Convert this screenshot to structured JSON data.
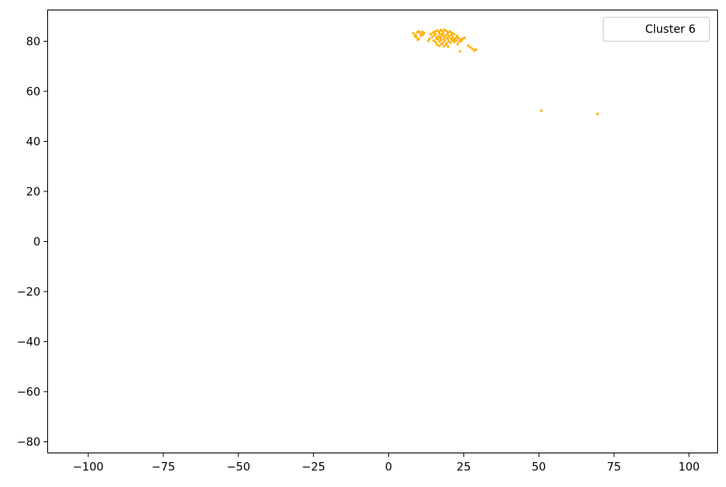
{
  "chart_data": {
    "type": "scatter",
    "title": "",
    "xlabel": "",
    "ylabel": "",
    "xlim": [
      -113.5,
      109.5
    ],
    "ylim": [
      -84.5,
      92.5
    ],
    "grid": false,
    "legend_position": "top-right",
    "xticks": [
      -100,
      -75,
      -50,
      -25,
      0,
      25,
      50,
      75,
      100
    ],
    "xtick_labels": [
      "−100",
      "−75",
      "−50",
      "−25",
      "0",
      "25",
      "50",
      "75",
      "100"
    ],
    "yticks": [
      -80,
      -60,
      -40,
      -20,
      0,
      20,
      40,
      60,
      80
    ],
    "ytick_labels": [
      "−80",
      "−60",
      "−40",
      "−20",
      "0",
      "20",
      "40",
      "60",
      "80"
    ],
    "series": [
      {
        "name": "Cluster 6",
        "color": "#ffb000",
        "marker": "point",
        "points": [
          [
            8.2,
            83.2
          ],
          [
            9.0,
            82.5
          ],
          [
            9.5,
            83.6
          ],
          [
            10.1,
            83.9
          ],
          [
            10.6,
            83.1
          ],
          [
            11.2,
            83.8
          ],
          [
            11.8,
            83.4
          ],
          [
            9.2,
            81.6
          ],
          [
            10.0,
            81.0
          ],
          [
            10.8,
            82.2
          ],
          [
            8.7,
            82.0
          ],
          [
            11.5,
            82.7
          ],
          [
            9.7,
            80.6
          ],
          [
            14.0,
            82.9
          ],
          [
            14.8,
            83.5
          ],
          [
            15.5,
            84.0
          ],
          [
            16.2,
            84.3
          ],
          [
            16.8,
            83.7
          ],
          [
            17.4,
            84.5
          ],
          [
            18.0,
            84.0
          ],
          [
            18.6,
            84.6
          ],
          [
            19.2,
            84.1
          ],
          [
            19.8,
            83.6
          ],
          [
            20.5,
            83.9
          ],
          [
            21.1,
            83.3
          ],
          [
            21.8,
            82.8
          ],
          [
            14.5,
            81.8
          ],
          [
            15.2,
            82.4
          ],
          [
            15.9,
            81.5
          ],
          [
            16.5,
            82.0
          ],
          [
            17.1,
            81.2
          ],
          [
            17.7,
            82.6
          ],
          [
            18.3,
            81.8
          ],
          [
            18.9,
            82.3
          ],
          [
            19.5,
            81.4
          ],
          [
            20.1,
            82.0
          ],
          [
            20.8,
            81.1
          ],
          [
            21.4,
            81.6
          ],
          [
            22.0,
            80.9
          ],
          [
            22.6,
            81.5
          ],
          [
            15.0,
            80.3
          ],
          [
            15.7,
            79.6
          ],
          [
            16.3,
            80.8
          ],
          [
            16.9,
            79.9
          ],
          [
            17.5,
            80.5
          ],
          [
            18.1,
            79.4
          ],
          [
            18.7,
            80.2
          ],
          [
            19.3,
            79.1
          ],
          [
            19.9,
            80.0
          ],
          [
            20.6,
            79.5
          ],
          [
            21.2,
            80.4
          ],
          [
            21.9,
            79.8
          ],
          [
            22.5,
            80.3
          ],
          [
            16.1,
            78.6
          ],
          [
            16.9,
            78.2
          ],
          [
            17.6,
            78.9
          ],
          [
            18.4,
            78.0
          ],
          [
            19.1,
            78.7
          ],
          [
            19.8,
            77.9
          ],
          [
            23.2,
            81.3
          ],
          [
            23.9,
            80.7
          ],
          [
            24.6,
            81.0
          ],
          [
            25.3,
            81.4
          ],
          [
            23.6,
            79.9
          ],
          [
            24.3,
            80.2
          ],
          [
            23.0,
            78.9
          ],
          [
            23.8,
            76.0
          ],
          [
            26.5,
            78.3
          ],
          [
            27.2,
            77.6
          ],
          [
            27.9,
            77.0
          ],
          [
            28.5,
            76.3
          ],
          [
            29.1,
            76.7
          ],
          [
            13.6,
            81.0
          ],
          [
            13.2,
            80.2
          ],
          [
            15.6,
            83.0
          ],
          [
            17.0,
            83.0
          ],
          [
            18.2,
            83.2
          ],
          [
            19.6,
            82.8
          ],
          [
            20.9,
            82.5
          ],
          [
            16.0,
            81.0
          ],
          [
            17.3,
            81.6
          ],
          [
            18.5,
            80.9
          ],
          [
            19.7,
            81.0
          ],
          [
            21.5,
            80.2
          ],
          [
            22.8,
            82.2
          ],
          [
            50.8,
            52.3
          ],
          [
            69.5,
            51.0
          ]
        ]
      }
    ]
  },
  "legend": {
    "label": "Cluster 6"
  }
}
